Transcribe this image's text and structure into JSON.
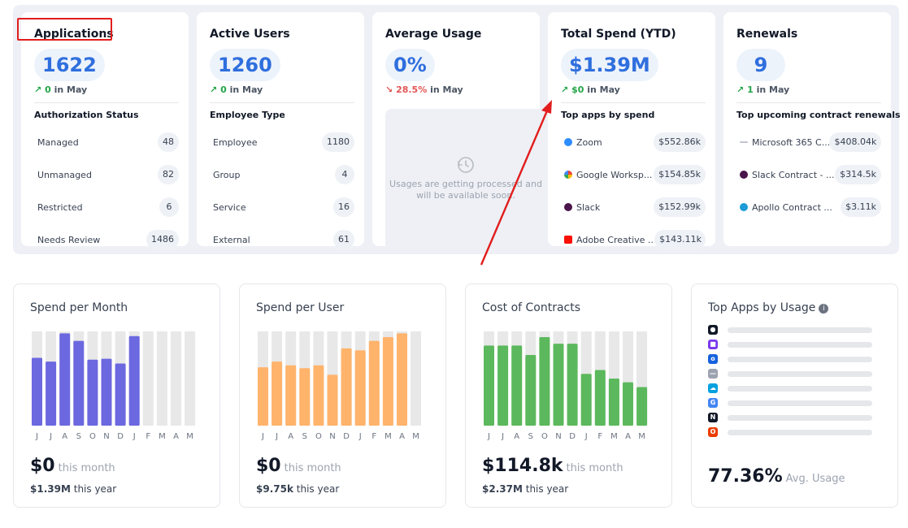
{
  "cards": {
    "applications": {
      "title": "Applications",
      "value": "1622",
      "trend_value": "0",
      "trend_suffix": "in May",
      "section": "Authorization Status",
      "rows": [
        {
          "label": "Managed",
          "value": "48"
        },
        {
          "label": "Unmanaged",
          "value": "82"
        },
        {
          "label": "Restricted",
          "value": "6"
        },
        {
          "label": "Needs Review",
          "value": "1486"
        }
      ]
    },
    "active_users": {
      "title": "Active Users",
      "value": "1260",
      "trend_value": "0",
      "trend_suffix": "in May",
      "section": "Employee Type",
      "rows": [
        {
          "label": "Employee",
          "value": "1180"
        },
        {
          "label": "Group",
          "value": "4"
        },
        {
          "label": "Service",
          "value": "16"
        },
        {
          "label": "External",
          "value": "61"
        }
      ]
    },
    "average_usage": {
      "title": "Average Usage",
      "value": "0%",
      "trend_value": "28.5%",
      "trend_suffix": "in May",
      "processing_text": "Usages are getting processed and will be available soon."
    },
    "total_spend": {
      "title": "Total Spend (YTD)",
      "value": "$1.39M",
      "trend_value": "$0",
      "trend_suffix": "in May",
      "section": "Top apps by spend",
      "rows": [
        {
          "label": "Zoom",
          "value": "$552.86k",
          "icon": "zoom-icon",
          "color": "#2d8cff"
        },
        {
          "label": "Google Worksp...",
          "value": "$154.85k",
          "icon": "google-icon",
          "color": "#ea4335"
        },
        {
          "label": "Slack",
          "value": "$152.99k",
          "icon": "slack-icon",
          "color": "#4a154b"
        },
        {
          "label": "Adobe Creative ...",
          "value": "$143.11k",
          "icon": "adobe-icon",
          "color": "#fa0f00"
        }
      ]
    },
    "renewals": {
      "title": "Renewals",
      "value": "9",
      "trend_value": "1",
      "trend_suffix": "in May",
      "section": "Top upcoming contract renewals",
      "rows": [
        {
          "label": "Microsoft 365 C...",
          "value": "$408.04k",
          "icon": "microsoft-icon",
          "color": "#c0c4cc"
        },
        {
          "label": "Slack Contract - ...",
          "value": "$314.5k",
          "icon": "slack-icon",
          "color": "#4a154b"
        },
        {
          "label": "Apollo Contract ...",
          "value": "$3.11k",
          "icon": "apollo-icon",
          "color": "#1e9bd7"
        }
      ]
    }
  },
  "charts": {
    "spend_per_month": {
      "title": "Spend per Month",
      "big_value": "$0",
      "big_label": "this month",
      "small_value": "$1.39M",
      "small_label": "this year"
    },
    "spend_per_user": {
      "title": "Spend per User",
      "big_value": "$0",
      "big_label": "this month",
      "small_value": "$9.75k",
      "small_label": "this year"
    },
    "cost_of_contracts": {
      "title": "Cost of Contracts",
      "big_value": "$114.8k",
      "big_label": "this month",
      "small_value": "$2.37M",
      "small_label": "this year"
    },
    "top_apps_by_usage": {
      "title": "Top Apps by Usage",
      "big_value": "77.36%",
      "big_label": "Avg. Usage",
      "apps": [
        {
          "icon": "github-icon",
          "color": "#111827",
          "glyph": "●"
        },
        {
          "icon": "app-purple-icon",
          "color": "#7c3aed",
          "glyph": "■"
        },
        {
          "icon": "okta-icon",
          "color": "#1662dd",
          "glyph": "o"
        },
        {
          "icon": "app-dash-icon",
          "color": "#9ca3af",
          "glyph": "—"
        },
        {
          "icon": "salesforce-icon",
          "color": "#00a1e0",
          "glyph": "☁"
        },
        {
          "icon": "google-icon",
          "color": "#4285f4",
          "glyph": "G"
        },
        {
          "icon": "notion-icon",
          "color": "#111827",
          "glyph": "N"
        },
        {
          "icon": "office-icon",
          "color": "#eb3c00",
          "glyph": "O"
        }
      ]
    }
  },
  "chart_data": [
    {
      "type": "bar",
      "title": "Spend per Month",
      "categories": [
        "J",
        "J",
        "A",
        "S",
        "O",
        "N",
        "D",
        "J",
        "F",
        "M",
        "A",
        "M"
      ],
      "values": [
        0.72,
        0.68,
        0.98,
        0.9,
        0.7,
        0.71,
        0.66,
        0.95,
        0,
        0,
        0,
        0
      ],
      "ylim": [
        0,
        1
      ],
      "color": "#6c68e0"
    },
    {
      "type": "bar",
      "title": "Spend per User",
      "categories": [
        "J",
        "J",
        "A",
        "S",
        "O",
        "N",
        "D",
        "J",
        "F",
        "M",
        "A",
        "M"
      ],
      "values": [
        0.62,
        0.68,
        0.64,
        0.61,
        0.64,
        0.54,
        0.82,
        0.8,
        0.9,
        0.94,
        0.98,
        0
      ],
      "ylim": [
        0,
        1
      ],
      "color": "#ffb36b"
    },
    {
      "type": "bar",
      "title": "Cost of Contracts",
      "categories": [
        "J",
        "J",
        "A",
        "S",
        "O",
        "N",
        "D",
        "J",
        "F",
        "M",
        "A",
        "M"
      ],
      "values": [
        0.85,
        0.85,
        0.85,
        0.75,
        0.94,
        0.87,
        0.87,
        0.55,
        0.59,
        0.5,
        0.46,
        0.41
      ],
      "ylim": [
        0,
        1
      ],
      "color": "#5cb85c"
    }
  ]
}
